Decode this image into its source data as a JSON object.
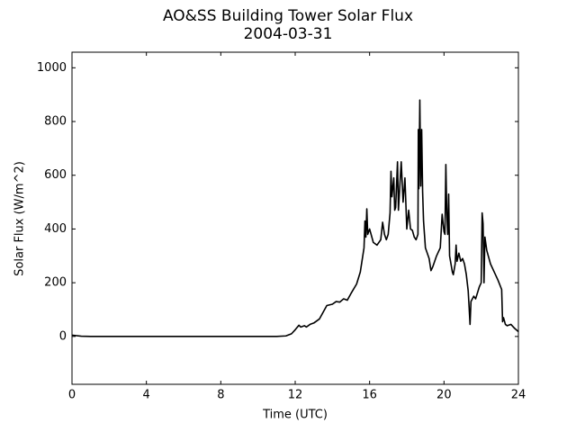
{
  "chart_data": {
    "type": "line",
    "title": "AO&SS Building Tower Solar Flux",
    "subtitle": "2004-03-31",
    "x_label": "Time (UTC)",
    "y_label": "Solar Flux (W/m^2)",
    "color": "#000000",
    "xlim": [
      0,
      24
    ],
    "xticks": [
      0,
      4,
      8,
      12,
      16,
      20,
      24
    ],
    "ylim": [
      -178,
      1058
    ],
    "yticks": [
      0,
      200,
      400,
      600,
      800,
      1000
    ],
    "x": [
      0,
      0.5,
      1,
      2,
      4,
      6,
      8,
      10,
      11,
      11.5,
      11.8,
      12,
      12.2,
      12.3,
      12.5,
      12.6,
      12.8,
      13,
      13.3,
      13.5,
      13.7,
      14,
      14.2,
      14.4,
      14.6,
      14.8,
      15,
      15.3,
      15.5,
      15.7,
      15.75,
      15.8,
      15.85,
      15.9,
      16,
      16.2,
      16.4,
      16.6,
      16.7,
      16.8,
      16.9,
      17,
      17.1,
      17.15,
      17.2,
      17.3,
      17.35,
      17.4,
      17.5,
      17.55,
      17.7,
      17.8,
      17.9,
      18,
      18.1,
      18.2,
      18.3,
      18.4,
      18.5,
      18.6,
      18.62,
      18.65,
      18.7,
      18.75,
      18.8,
      18.85,
      18.9,
      19,
      19.2,
      19.3,
      19.4,
      19.6,
      19.8,
      19.9,
      20,
      20.05,
      20.1,
      20.15,
      20.2,
      20.25,
      20.3,
      20.45,
      20.5,
      20.6,
      20.65,
      20.7,
      20.8,
      20.9,
      21,
      21.1,
      21.2,
      21.3,
      21.35,
      21.4,
      21.45,
      21.6,
      21.7,
      21.9,
      22,
      22.05,
      22.1,
      22.15,
      22.2,
      22.3,
      22.5,
      22.7,
      22.9,
      23.1,
      23.15,
      23.2,
      23.3,
      23.4,
      23.6,
      23.8,
      24
    ],
    "values": [
      5,
      1,
      0,
      0,
      0,
      0,
      0,
      0,
      0,
      2,
      10,
      25,
      42,
      35,
      40,
      35,
      45,
      50,
      65,
      90,
      115,
      120,
      130,
      128,
      140,
      135,
      160,
      195,
      240,
      330,
      430,
      370,
      475,
      380,
      400,
      350,
      340,
      360,
      425,
      380,
      360,
      380,
      460,
      615,
      520,
      590,
      470,
      480,
      650,
      470,
      650,
      500,
      590,
      400,
      470,
      400,
      395,
      370,
      360,
      380,
      770,
      550,
      880,
      560,
      770,
      540,
      430,
      330,
      290,
      245,
      260,
      300,
      330,
      455,
      390,
      380,
      640,
      460,
      380,
      530,
      300,
      240,
      230,
      270,
      340,
      280,
      310,
      280,
      290,
      270,
      230,
      170,
      110,
      45,
      130,
      150,
      140,
      185,
      200,
      460,
      420,
      200,
      370,
      320,
      270,
      240,
      210,
      175,
      55,
      70,
      45,
      40,
      45,
      30,
      18
    ]
  }
}
